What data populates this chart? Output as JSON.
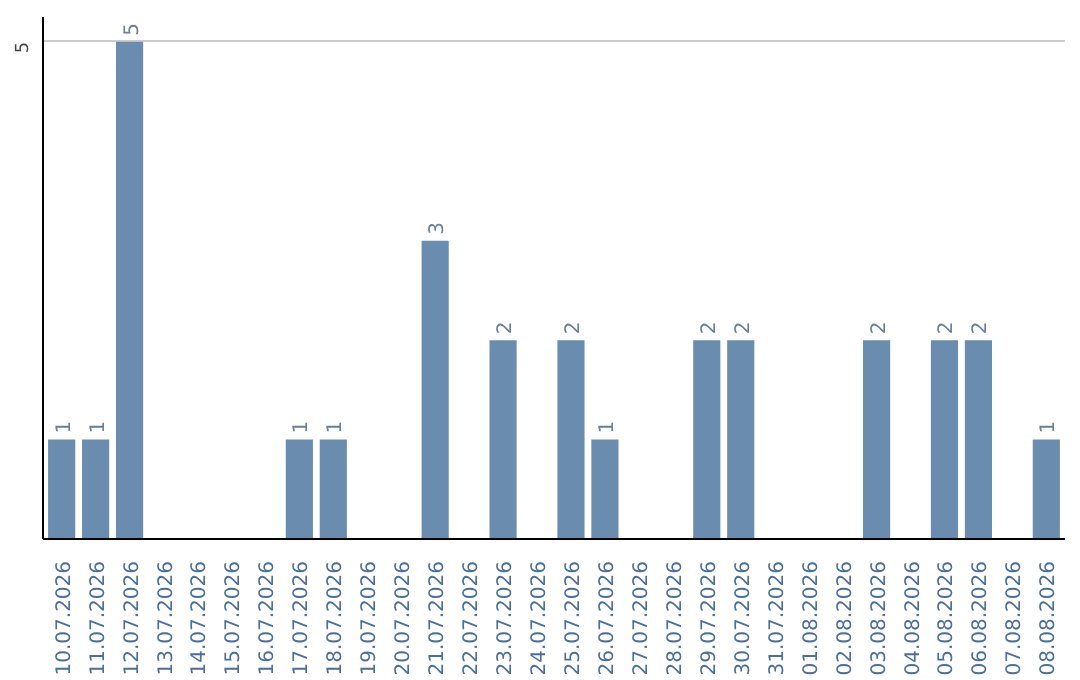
{
  "chart_data": {
    "type": "bar",
    "categories": [
      "10.07.2026",
      "11.07.2026",
      "12.07.2026",
      "13.07.2026",
      "14.07.2026",
      "15.07.2026",
      "16.07.2026",
      "17.07.2026",
      "18.07.2026",
      "19.07.2026",
      "20.07.2026",
      "21.07.2026",
      "22.07.2026",
      "23.07.2026",
      "24.07.2026",
      "25.07.2026",
      "26.07.2026",
      "27.07.2026",
      "28.07.2026",
      "29.07.2026",
      "30.07.2026",
      "31.07.2026",
      "01.08.2026",
      "02.08.2026",
      "03.08.2026",
      "04.08.2026",
      "05.08.2026",
      "06.08.2026",
      "07.08.2026",
      "08.08.2026"
    ],
    "values": [
      1,
      1,
      5,
      0,
      0,
      0,
      0,
      1,
      1,
      0,
      0,
      3,
      0,
      2,
      0,
      2,
      1,
      0,
      0,
      2,
      2,
      0,
      0,
      0,
      2,
      0,
      2,
      2,
      0,
      1
    ],
    "value_labels": [
      "1",
      "1",
      "5",
      null,
      null,
      null,
      null,
      "1",
      "1",
      null,
      null,
      "3",
      null,
      "2",
      null,
      "2",
      "1",
      null,
      null,
      "2",
      "2",
      null,
      null,
      null,
      "2",
      null,
      "2",
      "2",
      null,
      "1"
    ],
    "color": "#6a8caf",
    "ylim": [
      0,
      5.25
    ],
    "yticks": [
      5
    ],
    "grid": "y"
  }
}
